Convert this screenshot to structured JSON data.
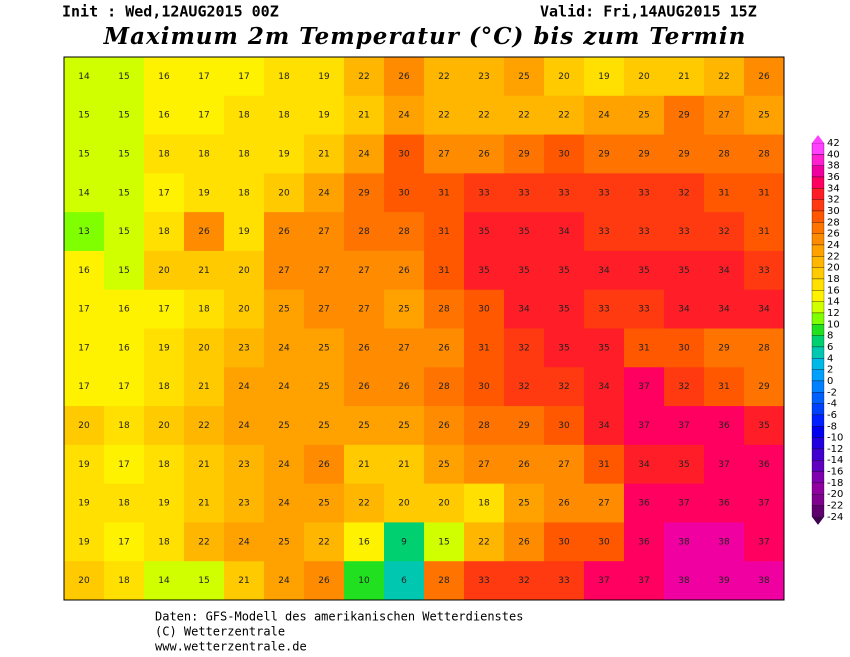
{
  "header": {
    "init": "Init : Wed,12AUG2015 00Z",
    "valid": "Valid: Fri,14AUG2015 15Z",
    "title": "Maximum 2m Temperatur (°C) bis zum Termin"
  },
  "legend": {
    "levels": [
      {
        "value": 42,
        "color": "#ff40ff"
      },
      {
        "value": 40,
        "color": "#ff20d0"
      },
      {
        "value": 38,
        "color": "#f000a0"
      },
      {
        "value": 36,
        "color": "#ff0060"
      },
      {
        "value": 34,
        "color": "#ff1e28"
      },
      {
        "value": 32,
        "color": "#ff3a10"
      },
      {
        "value": 30,
        "color": "#ff5800"
      },
      {
        "value": 28,
        "color": "#ff7400"
      },
      {
        "value": 26,
        "color": "#ff8c00"
      },
      {
        "value": 24,
        "color": "#ffa200"
      },
      {
        "value": 22,
        "color": "#ffb600"
      },
      {
        "value": 20,
        "color": "#ffca00"
      },
      {
        "value": 18,
        "color": "#ffe000"
      },
      {
        "value": 16,
        "color": "#fff200"
      },
      {
        "value": 14,
        "color": "#d0ff00"
      },
      {
        "value": 12,
        "color": "#80ff00"
      },
      {
        "value": 10,
        "color": "#20e020"
      },
      {
        "value": 8,
        "color": "#00d070"
      },
      {
        "value": 6,
        "color": "#00c8b0"
      },
      {
        "value": 4,
        "color": "#00b8e8"
      },
      {
        "value": 2,
        "color": "#00a0ff"
      },
      {
        "value": 0,
        "color": "#0080ff"
      },
      {
        "value": -2,
        "color": "#0060ff"
      },
      {
        "value": -4,
        "color": "#0040ff"
      },
      {
        "value": -6,
        "color": "#0020ff"
      },
      {
        "value": -8,
        "color": "#0000f0"
      },
      {
        "value": -10,
        "color": "#2000e0"
      },
      {
        "value": -12,
        "color": "#4000d0"
      },
      {
        "value": -14,
        "color": "#6000c0"
      },
      {
        "value": -16,
        "color": "#8000b0"
      },
      {
        "value": -18,
        "color": "#9000a0"
      },
      {
        "value": -20,
        "color": "#800090"
      },
      {
        "value": -22,
        "color": "#600070"
      },
      {
        "value": -24,
        "color": "#400050"
      }
    ]
  },
  "field": {
    "rows": [
      [
        14,
        15,
        16,
        17,
        17,
        18,
        19,
        22,
        26,
        22,
        23,
        25,
        20,
        19,
        20,
        21,
        22,
        26
      ],
      [
        15,
        15,
        16,
        17,
        18,
        18,
        19,
        21,
        24,
        22,
        22,
        22,
        22,
        24,
        25,
        29,
        27,
        25
      ],
      [
        15,
        15,
        18,
        18,
        18,
        19,
        21,
        24,
        30,
        27,
        26,
        29,
        30,
        29,
        29,
        29,
        28,
        28
      ],
      [
        14,
        15,
        17,
        19,
        18,
        20,
        24,
        29,
        30,
        31,
        33,
        33,
        33,
        33,
        33,
        32,
        31,
        31
      ],
      [
        13,
        15,
        18,
        26,
        19,
        26,
        27,
        28,
        28,
        31,
        35,
        35,
        34,
        33,
        33,
        33,
        32,
        31
      ],
      [
        16,
        15,
        20,
        21,
        20,
        27,
        27,
        27,
        26,
        31,
        35,
        35,
        35,
        34,
        35,
        35,
        34,
        33
      ],
      [
        17,
        16,
        17,
        18,
        20,
        25,
        27,
        27,
        25,
        28,
        30,
        34,
        35,
        33,
        33,
        34,
        34,
        34
      ],
      [
        17,
        16,
        19,
        20,
        23,
        24,
        25,
        26,
        27,
        26,
        31,
        32,
        35,
        35,
        31,
        30,
        29,
        28
      ],
      [
        17,
        17,
        18,
        21,
        24,
        24,
        25,
        26,
        26,
        28,
        30,
        32,
        32,
        34,
        37,
        32,
        31,
        29
      ],
      [
        20,
        18,
        20,
        22,
        24,
        25,
        25,
        25,
        25,
        26,
        28,
        29,
        30,
        34,
        37,
        37,
        36,
        35
      ],
      [
        19,
        17,
        18,
        21,
        23,
        24,
        26,
        21,
        21,
        25,
        27,
        26,
        27,
        31,
        34,
        35,
        37,
        36
      ],
      [
        19,
        18,
        19,
        21,
        23,
        24,
        25,
        22,
        20,
        20,
        18,
        25,
        26,
        27,
        36,
        37,
        36,
        37
      ],
      [
        19,
        17,
        18,
        22,
        24,
        25,
        22,
        16,
        9,
        15,
        22,
        26,
        30,
        30,
        36,
        38,
        38,
        37
      ],
      [
        20,
        18,
        14,
        15,
        21,
        24,
        26,
        10,
        6,
        28,
        33,
        32,
        33,
        37,
        37,
        38,
        39,
        38
      ]
    ]
  },
  "footer": {
    "line1": "Daten: GFS-Modell des amerikanischen Wetterdienstes",
    "line2": "(C) Wetterzentrale",
    "line3": "www.wetterzentrale.de"
  }
}
